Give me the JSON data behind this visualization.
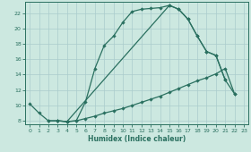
{
  "xlabel": "Humidex (Indice chaleur)",
  "bg_color": "#cce8e0",
  "grid_color": "#aacccc",
  "line_color": "#2a7060",
  "xlim": [
    -0.5,
    23.5
  ],
  "ylim": [
    7.5,
    23.5
  ],
  "xticks": [
    0,
    1,
    2,
    3,
    4,
    5,
    6,
    7,
    8,
    9,
    10,
    11,
    12,
    13,
    14,
    15,
    16,
    17,
    18,
    19,
    20,
    21,
    22,
    23
  ],
  "yticks": [
    8,
    10,
    12,
    14,
    16,
    18,
    20,
    22
  ],
  "line1_x": [
    0,
    1,
    2,
    3,
    4,
    5,
    6,
    7,
    8,
    9,
    10,
    11,
    12,
    13,
    14,
    15,
    16,
    17,
    18,
    19,
    20,
    21
  ],
  "line1_y": [
    10.2,
    9.0,
    8.0,
    8.0,
    7.9,
    8.0,
    10.5,
    14.8,
    17.8,
    19.0,
    20.8,
    22.2,
    22.5,
    22.6,
    22.7,
    23.0,
    22.5,
    21.2,
    19.0,
    17.0,
    16.5,
    13.3
  ],
  "line2_x": [
    2,
    3,
    4,
    5,
    6,
    7,
    8,
    9,
    10,
    11,
    12,
    13,
    14,
    15,
    16,
    17,
    18,
    19,
    20,
    21,
    22
  ],
  "line2_y": [
    8.0,
    8.0,
    7.9,
    8.0,
    8.3,
    8.6,
    9.0,
    9.3,
    9.6,
    10.0,
    10.4,
    10.8,
    11.2,
    11.7,
    12.2,
    12.7,
    13.2,
    13.6,
    14.1,
    14.8,
    11.5
  ],
  "line3_x": [
    3,
    4,
    15,
    16,
    17,
    18,
    19,
    20,
    21,
    22
  ],
  "line3_y": [
    8.0,
    7.9,
    23.0,
    22.5,
    21.2,
    19.0,
    17.0,
    16.5,
    13.3,
    11.5
  ]
}
